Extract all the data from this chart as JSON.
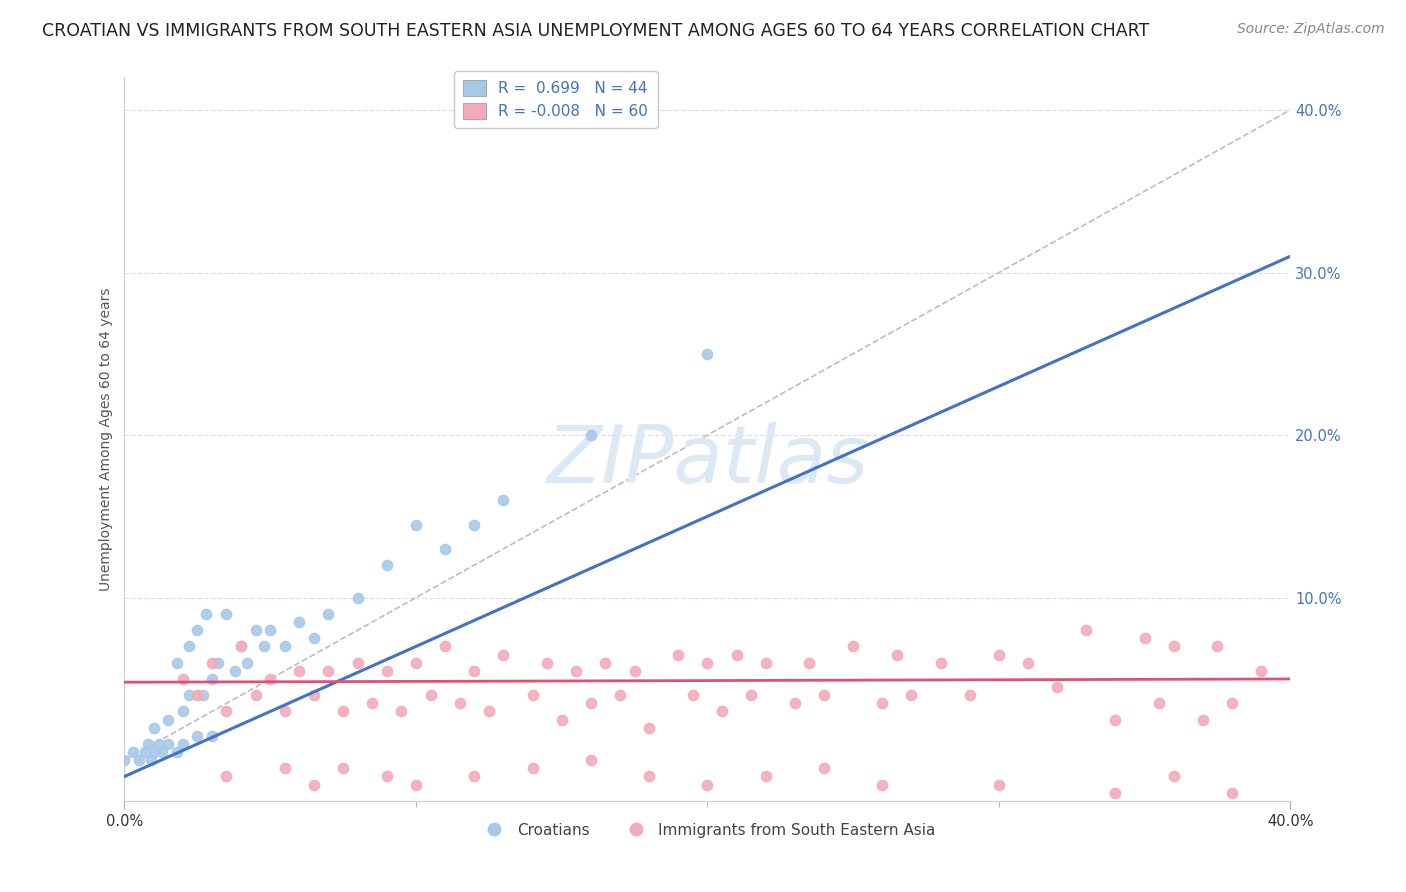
{
  "title": "CROATIAN VS IMMIGRANTS FROM SOUTH EASTERN ASIA UNEMPLOYMENT AMONG AGES 60 TO 64 YEARS CORRELATION CHART",
  "source": "Source: ZipAtlas.com",
  "ylabel": "Unemployment Among Ages 60 to 64 years",
  "legend_r_blue": "0.699",
  "legend_n_blue": "44",
  "legend_r_pink": "-0.008",
  "legend_n_pink": "60",
  "blue_scatter_color": "#A8C8E8",
  "pink_scatter_color": "#F4AABB",
  "blue_line_color": "#4472C4",
  "pink_line_color": "#E05070",
  "diag_line_color": "#BBBBCC",
  "background_color": "#FFFFFF",
  "grid_color": "#DDDDEE",
  "watermark_text": "ZIPatlas",
  "watermark_color": "#DCE9F5",
  "title_fontsize": 12.5,
  "source_fontsize": 10,
  "axis_label_fontsize": 10,
  "tick_fontsize": 10.5,
  "legend_fontsize": 11,
  "ytick_color": "#4472C4",
  "xtick_color": "#333333",
  "ylabel_color": "#555555",
  "xlim": [
    0.0,
    0.4
  ],
  "ylim": [
    -0.025,
    0.42
  ],
  "blue_x": [
    0.0,
    0.003,
    0.005,
    0.007,
    0.008,
    0.009,
    0.01,
    0.01,
    0.012,
    0.013,
    0.015,
    0.015,
    0.018,
    0.018,
    0.02,
    0.02,
    0.022,
    0.022,
    0.025,
    0.025,
    0.027,
    0.028,
    0.03,
    0.03,
    0.032,
    0.035,
    0.038,
    0.04,
    0.042,
    0.045,
    0.048,
    0.05,
    0.055,
    0.06,
    0.065,
    0.07,
    0.08,
    0.09,
    0.1,
    0.11,
    0.12,
    0.13,
    0.16,
    0.2
  ],
  "blue_y": [
    0.0,
    0.005,
    0.0,
    0.005,
    0.01,
    0.0,
    0.005,
    0.02,
    0.01,
    0.005,
    0.01,
    0.025,
    0.005,
    0.06,
    0.01,
    0.03,
    0.04,
    0.07,
    0.015,
    0.08,
    0.04,
    0.09,
    0.015,
    0.05,
    0.06,
    0.09,
    0.055,
    0.07,
    0.06,
    0.08,
    0.07,
    0.08,
    0.07,
    0.085,
    0.075,
    0.09,
    0.1,
    0.12,
    0.145,
    0.13,
    0.145,
    0.16,
    0.2,
    0.25
  ],
  "pink_x": [
    0.02,
    0.025,
    0.03,
    0.035,
    0.04,
    0.045,
    0.05,
    0.055,
    0.06,
    0.065,
    0.07,
    0.075,
    0.08,
    0.085,
    0.09,
    0.095,
    0.1,
    0.105,
    0.11,
    0.115,
    0.12,
    0.125,
    0.13,
    0.14,
    0.145,
    0.15,
    0.155,
    0.16,
    0.165,
    0.17,
    0.175,
    0.18,
    0.19,
    0.195,
    0.2,
    0.205,
    0.21,
    0.215,
    0.22,
    0.23,
    0.235,
    0.24,
    0.25,
    0.26,
    0.265,
    0.27,
    0.28,
    0.29,
    0.3,
    0.31,
    0.32,
    0.33,
    0.34,
    0.35,
    0.355,
    0.36,
    0.37,
    0.375,
    0.38,
    0.39
  ],
  "pink_y": [
    0.05,
    0.04,
    0.06,
    0.03,
    0.07,
    0.04,
    0.05,
    0.03,
    0.055,
    0.04,
    0.055,
    0.03,
    0.06,
    0.035,
    0.055,
    0.03,
    0.06,
    0.04,
    0.07,
    0.035,
    0.055,
    0.03,
    0.065,
    0.04,
    0.06,
    0.025,
    0.055,
    0.035,
    0.06,
    0.04,
    0.055,
    0.02,
    0.065,
    0.04,
    0.06,
    0.03,
    0.065,
    0.04,
    0.06,
    0.035,
    0.06,
    0.04,
    0.07,
    0.035,
    0.065,
    0.04,
    0.06,
    0.04,
    0.065,
    0.06,
    0.045,
    0.08,
    0.025,
    0.075,
    0.035,
    0.07,
    0.025,
    0.07,
    0.035,
    0.055
  ],
  "pink_extra_low_x": [
    0.035,
    0.055,
    0.065,
    0.075,
    0.09,
    0.1,
    0.12,
    0.14,
    0.16,
    0.18,
    0.2,
    0.22,
    0.24,
    0.26,
    0.3,
    0.34,
    0.36,
    0.38
  ],
  "pink_extra_low_y": [
    -0.01,
    -0.005,
    -0.015,
    -0.005,
    -0.01,
    -0.015,
    -0.01,
    -0.005,
    0.0,
    -0.01,
    -0.015,
    -0.01,
    -0.005,
    -0.015,
    -0.015,
    -0.02,
    -0.01,
    -0.02
  ]
}
